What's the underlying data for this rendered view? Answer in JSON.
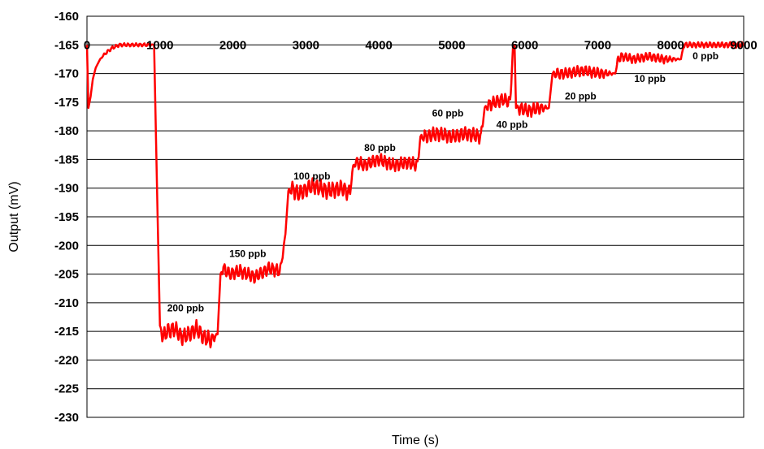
{
  "chart_data": {
    "type": "line",
    "title": "",
    "xlabel": "Time (s)",
    "ylabel": "Output (mV)",
    "xlim": [
      0,
      9000
    ],
    "ylim": [
      -230,
      -160
    ],
    "x_ticks": [
      "0",
      "1000",
      "2000",
      "3000",
      "4000",
      "5000",
      "6000",
      "7000",
      "8000",
      "9000"
    ],
    "y_ticks": [
      "-160",
      "-165",
      "-170",
      "-175",
      "-180",
      "-185",
      "-190",
      "-195",
      "-200",
      "-205",
      "-210",
      "-215",
      "-220",
      "-225",
      "-230"
    ],
    "grid": "horizontal",
    "series_color": "#ff0000",
    "series": [
      {
        "x": [
          0,
          20,
          50,
          80,
          120,
          180,
          250,
          350,
          450,
          550,
          650,
          750,
          850,
          920,
          960,
          1000,
          1040,
          1100,
          1200,
          1300,
          1400,
          1500,
          1600,
          1700,
          1790,
          1830,
          1870,
          1950,
          2100,
          2300,
          2500,
          2650,
          2720,
          2760,
          2800,
          2900,
          3100,
          3300,
          3500,
          3600,
          3650,
          3700,
          3800,
          4000,
          4200,
          4400,
          4530,
          4570,
          4620,
          4800,
          5000,
          5200,
          5400,
          5450,
          5500,
          5600,
          5700,
          5800,
          5840,
          5860,
          5880,
          5920,
          6050,
          6200,
          6330,
          6380,
          6420,
          6550,
          6800,
          7050,
          7240,
          7280,
          7330,
          7500,
          7700,
          7900,
          8140,
          8180,
          8230,
          8400,
          8600,
          8800,
          9000
        ],
        "y": [
          -165,
          -176,
          -174,
          -171,
          -169,
          -167.5,
          -166.5,
          -165.5,
          -165,
          -165,
          -165,
          -165,
          -165,
          -165,
          -190,
          -214,
          -216,
          -215,
          -214.5,
          -216,
          -215.5,
          -214.5,
          -216,
          -216.5,
          -215.5,
          -205,
          -204,
          -205,
          -204.5,
          -205.5,
          -204,
          -204.5,
          -198,
          -190.5,
          -190,
          -191,
          -189.5,
          -190.5,
          -190,
          -191,
          -186,
          -185.5,
          -186,
          -185,
          -186,
          -185.5,
          -186,
          -181,
          -181,
          -180.5,
          -181,
          -180.5,
          -181,
          -176,
          -175.5,
          -175,
          -174.5,
          -175,
          -165,
          -165,
          -176,
          -176,
          -176.5,
          -176,
          -176,
          -170,
          -170,
          -170,
          -169.5,
          -170,
          -170,
          -167.5,
          -167,
          -167.5,
          -167,
          -167.5,
          -167.5,
          -165,
          -165,
          -165,
          -165,
          -165,
          -165
        ],
        "noise_amplitude": [
          0,
          0,
          0,
          0,
          0,
          0,
          0.3,
          0.3,
          0.3,
          0.3,
          0.3,
          0.3,
          0.3,
          0,
          0,
          0,
          1.5,
          1.5,
          1.5,
          1.5,
          1.5,
          1.5,
          1.5,
          1.5,
          0,
          0,
          1.2,
          1.2,
          1.2,
          1.2,
          1.2,
          1.2,
          0,
          0,
          1.5,
          1.5,
          1.5,
          1.5,
          1.5,
          1.5,
          0,
          1.2,
          1.2,
          1.2,
          1.2,
          1.2,
          1.2,
          0,
          1.3,
          1.3,
          1.3,
          1.3,
          1.3,
          0,
          1.2,
          1.2,
          1.2,
          1.2,
          0,
          0,
          0,
          1.2,
          1.2,
          1.2,
          0,
          0,
          1.0,
          1.0,
          1.0,
          1.0,
          0,
          0.8,
          0.8,
          0.8,
          0.8,
          0.8,
          0,
          0.5,
          0.5,
          0.5,
          0.5,
          0.5,
          0.5
        ]
      }
    ],
    "annotations": [
      {
        "text": "200 ppb",
        "x": 1100,
        "y": -211.5
      },
      {
        "text": "150 ppb",
        "x": 1950,
        "y": -202
      },
      {
        "text": "100 ppb",
        "x": 2830,
        "y": -188.5
      },
      {
        "text": "80 ppb",
        "x": 3800,
        "y": -183.5
      },
      {
        "text": "60 ppb",
        "x": 4730,
        "y": -177.5
      },
      {
        "text": "40 ppb",
        "x": 5610,
        "y": -179.5
      },
      {
        "text": "20 ppb",
        "x": 6550,
        "y": -174.5
      },
      {
        "text": "10 ppb",
        "x": 7500,
        "y": -171.5
      },
      {
        "text": "0 ppb",
        "x": 8300,
        "y": -167.5
      }
    ]
  }
}
